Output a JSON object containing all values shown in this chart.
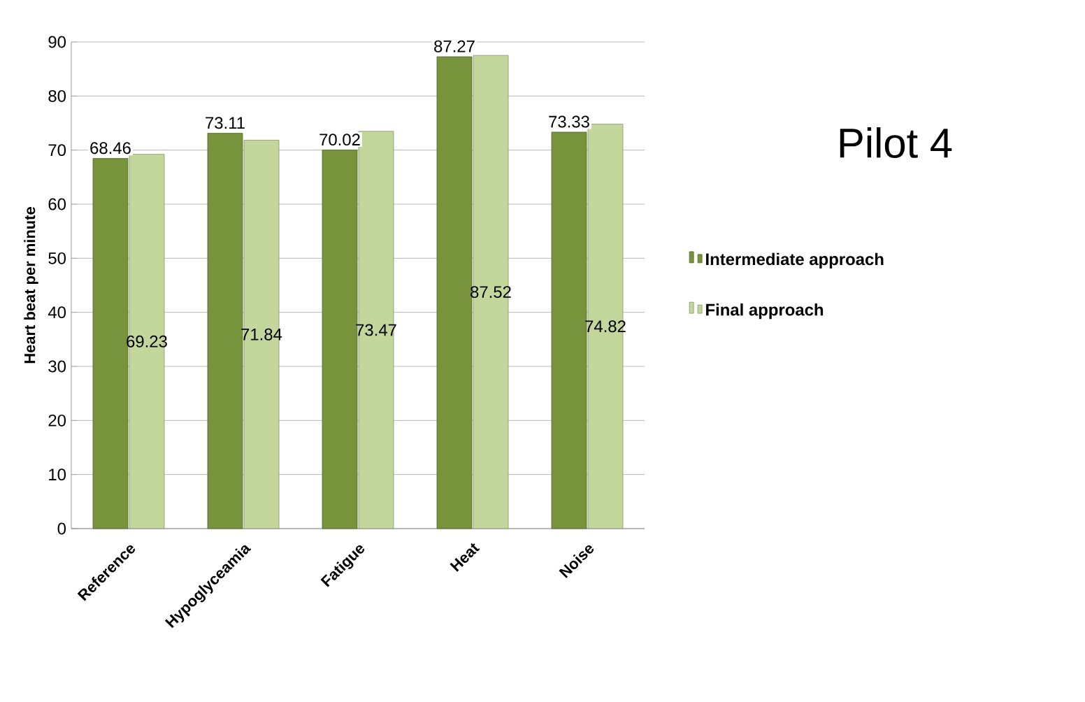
{
  "chart_data": {
    "type": "bar",
    "title": "Pilot 4",
    "ylabel": "Heart beat per minute",
    "categories": [
      "Reference",
      "Hypoglyceamia",
      "Fatigue",
      "Heat",
      "Noise"
    ],
    "series": [
      {
        "name": "Intermediate approach",
        "color": "#77933c",
        "values": [
          68.46,
          73.11,
          70.02,
          87.27,
          73.33
        ]
      },
      {
        "name": "Final approach",
        "color": "#c3d69b",
        "values": [
          69.23,
          71.84,
          73.47,
          87.52,
          74.82
        ]
      }
    ],
    "ylim": [
      0,
      90
    ],
    "yticks": [
      0,
      10,
      20,
      30,
      40,
      50,
      60,
      70,
      80,
      90
    ],
    "grid": "y",
    "legend": "right",
    "data_labels": true
  }
}
